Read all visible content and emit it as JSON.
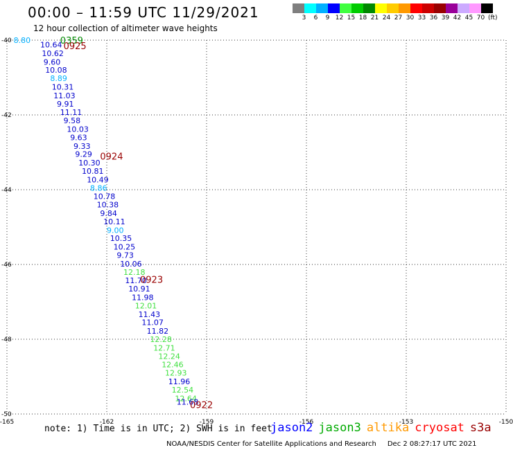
{
  "header": {
    "title": "00:00 – 11:59 UTC 11/29/2021",
    "subtitle": "12 hour collection of altimeter wave heights"
  },
  "colorbar": {
    "colors": [
      "#7f7f7f",
      "#00ffff",
      "#00b0ff",
      "#0000ff",
      "#40ff40",
      "#00cc00",
      "#008800",
      "#ffff00",
      "#ffcc00",
      "#ff9900",
      "#ff0000",
      "#cc0000",
      "#990000",
      "#990099",
      "#ccaaff",
      "#ff99ff",
      "#000000"
    ],
    "labels": [
      "3",
      "6",
      "9",
      "12",
      "15",
      "18",
      "21",
      "24",
      "27",
      "30",
      "33",
      "36",
      "39",
      "42",
      "45",
      "70"
    ],
    "unit": "(ft)"
  },
  "axes": {
    "lat_labels": [
      "-40",
      "-42",
      "-44",
      "-46",
      "-48",
      "-50"
    ],
    "lon_labels": [
      "-165",
      "-162",
      "-159",
      "-156",
      "-153",
      "-150"
    ]
  },
  "time_labels": [
    {
      "text": "0359",
      "color": "#008800"
    },
    {
      "text": "0925",
      "color": "#990000"
    },
    {
      "text": "0924",
      "color": "#990000"
    },
    {
      "text": "0923",
      "color": "#990000"
    },
    {
      "text": "0922",
      "color": "#990000"
    }
  ],
  "chart_data": {
    "type": "scatter",
    "title": "00:00 – 11:59 UTC 11/29/2021",
    "subtitle": "12 hour collection of altimeter wave heights",
    "xlim": [
      -165,
      -150
    ],
    "ylim": [
      -50,
      -40
    ],
    "unit": "ft",
    "points": [
      {
        "lon": -164.8,
        "lat": -40.0,
        "v": "8.80",
        "color": "#00b0ff"
      },
      {
        "lon": -164.0,
        "lat": -40.12,
        "v": "10.64",
        "color": "#0000cc"
      },
      {
        "lon": -163.95,
        "lat": -40.35,
        "v": "10.62",
        "color": "#0000cc"
      },
      {
        "lon": -163.9,
        "lat": -40.58,
        "v": "9.60",
        "color": "#0000cc"
      },
      {
        "lon": -163.85,
        "lat": -40.8,
        "v": "10.08",
        "color": "#0000cc"
      },
      {
        "lon": -163.7,
        "lat": -41.02,
        "v": "8.89",
        "color": "#00b0ff"
      },
      {
        "lon": -163.65,
        "lat": -41.25,
        "v": "10.31",
        "color": "#0000cc"
      },
      {
        "lon": -163.6,
        "lat": -41.48,
        "v": "11.03",
        "color": "#0000cc"
      },
      {
        "lon": -163.5,
        "lat": -41.7,
        "v": "9.91",
        "color": "#0000cc"
      },
      {
        "lon": -163.4,
        "lat": -41.93,
        "v": "11.11",
        "color": "#0000cc"
      },
      {
        "lon": -163.3,
        "lat": -42.15,
        "v": "9.58",
        "color": "#0000cc"
      },
      {
        "lon": -163.2,
        "lat": -42.38,
        "v": "10.03",
        "color": "#0000cc"
      },
      {
        "lon": -163.1,
        "lat": -42.6,
        "v": "9.63",
        "color": "#0000cc"
      },
      {
        "lon": -163.0,
        "lat": -42.83,
        "v": "9.33",
        "color": "#0000cc"
      },
      {
        "lon": -162.95,
        "lat": -43.05,
        "v": "9.29",
        "color": "#0000cc"
      },
      {
        "lon": -162.85,
        "lat": -43.28,
        "v": "10.30",
        "color": "#0000cc"
      },
      {
        "lon": -162.75,
        "lat": -43.5,
        "v": "10.81",
        "color": "#0000cc"
      },
      {
        "lon": -162.6,
        "lat": -43.73,
        "v": "10.49",
        "color": "#0000cc"
      },
      {
        "lon": -162.5,
        "lat": -43.95,
        "v": "8.86",
        "color": "#00b0ff"
      },
      {
        "lon": -162.4,
        "lat": -44.18,
        "v": "10.78",
        "color": "#0000cc"
      },
      {
        "lon": -162.3,
        "lat": -44.4,
        "v": "10.38",
        "color": "#0000cc"
      },
      {
        "lon": -162.2,
        "lat": -44.63,
        "v": "9.84",
        "color": "#0000cc"
      },
      {
        "lon": -162.1,
        "lat": -44.85,
        "v": "10.11",
        "color": "#0000cc"
      },
      {
        "lon": -162.0,
        "lat": -45.08,
        "v": "9.00",
        "color": "#00b0ff"
      },
      {
        "lon": -161.9,
        "lat": -45.3,
        "v": "10.35",
        "color": "#0000cc"
      },
      {
        "lon": -161.8,
        "lat": -45.53,
        "v": "10.25",
        "color": "#0000cc"
      },
      {
        "lon": -161.7,
        "lat": -45.75,
        "v": "9.73",
        "color": "#0000cc"
      },
      {
        "lon": -161.6,
        "lat": -45.98,
        "v": "10.06",
        "color": "#0000cc"
      },
      {
        "lon": -161.5,
        "lat": -46.2,
        "v": "12.18",
        "color": "#40e040"
      },
      {
        "lon": -161.45,
        "lat": -46.43,
        "v": "11.70",
        "color": "#0000cc"
      },
      {
        "lon": -161.35,
        "lat": -46.65,
        "v": "10.91",
        "color": "#0000cc"
      },
      {
        "lon": -161.25,
        "lat": -46.88,
        "v": "11.98",
        "color": "#0000cc"
      },
      {
        "lon": -161.15,
        "lat": -47.1,
        "v": "12.01",
        "color": "#40e040"
      },
      {
        "lon": -161.05,
        "lat": -47.33,
        "v": "11.43",
        "color": "#0000cc"
      },
      {
        "lon": -160.95,
        "lat": -47.55,
        "v": "11.07",
        "color": "#0000cc"
      },
      {
        "lon": -160.8,
        "lat": -47.78,
        "v": "11.82",
        "color": "#0000cc"
      },
      {
        "lon": -160.7,
        "lat": -48.0,
        "v": "12.28",
        "color": "#40e040"
      },
      {
        "lon": -160.6,
        "lat": -48.23,
        "v": "12.71",
        "color": "#40e040"
      },
      {
        "lon": -160.45,
        "lat": -48.45,
        "v": "12.24",
        "color": "#40e040"
      },
      {
        "lon": -160.35,
        "lat": -48.68,
        "v": "12.46",
        "color": "#40e040"
      },
      {
        "lon": -160.25,
        "lat": -48.9,
        "v": "12.93",
        "color": "#40e040"
      },
      {
        "lon": -160.15,
        "lat": -49.13,
        "v": "11.96",
        "color": "#0000cc"
      },
      {
        "lon": -160.05,
        "lat": -49.35,
        "v": "12.54",
        "color": "#40e040"
      },
      {
        "lon": -159.95,
        "lat": -49.58,
        "v": "12.64",
        "color": "#40e040"
      },
      {
        "lon": -159.9,
        "lat": -49.68,
        "v": "11.68",
        "color": "#0000cc"
      }
    ]
  },
  "legend": {
    "note": "note:  1) Time is in UTC; 2) SWH is in feet",
    "satellites": [
      {
        "name": "jason2",
        "color": "#0000ff"
      },
      {
        "name": "jason3",
        "color": "#00aa00"
      },
      {
        "name": "altika",
        "color": "#ff9900"
      },
      {
        "name": "cryosat",
        "color": "#ff0000"
      },
      {
        "name": "s3a",
        "color": "#990000"
      }
    ]
  },
  "footer": {
    "credit": "NOAA/NESDIS Center for Satellite Applications and Research",
    "date": "Dec  2 08:27:17 UTC 2021"
  }
}
